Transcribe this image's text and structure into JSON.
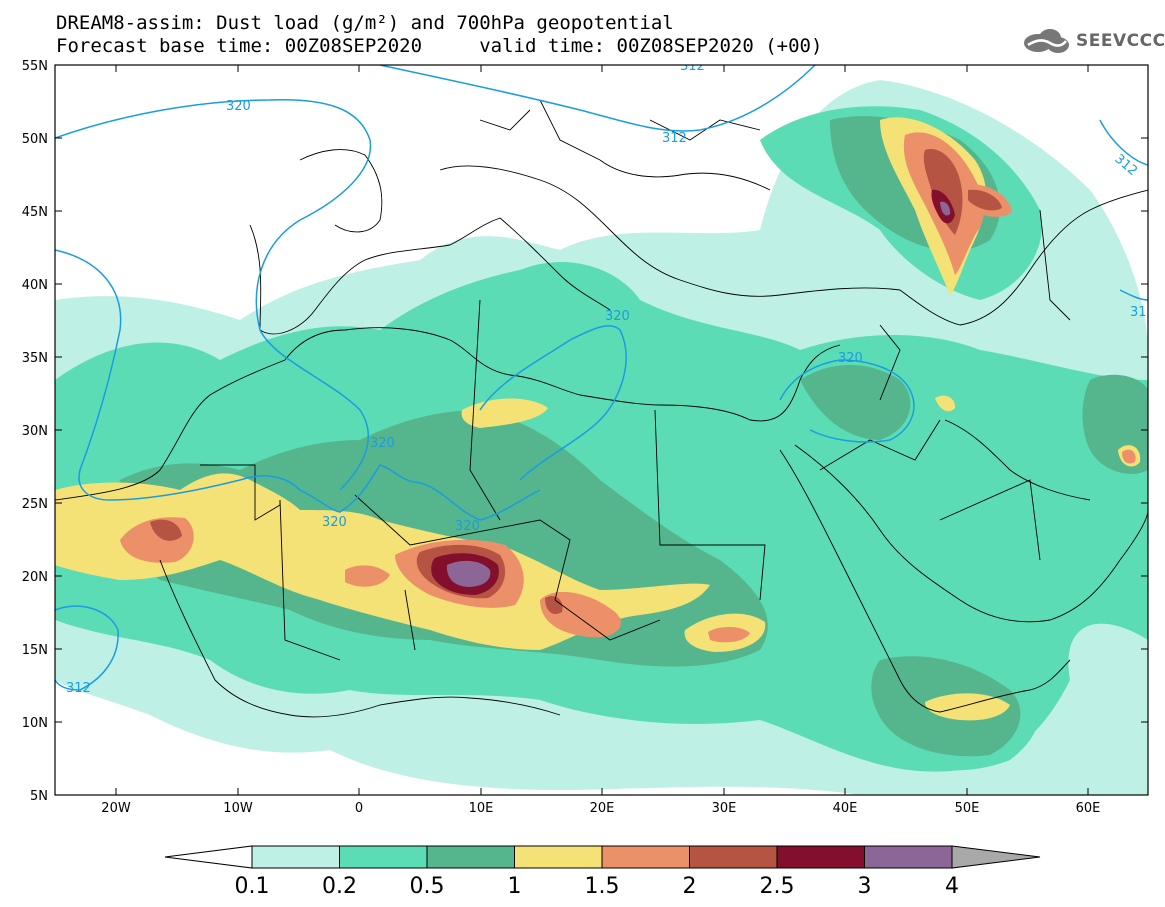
{
  "header": {
    "title_line1": "DREAM8-assim: Dust load (g/m²) and 700hPa geopotential",
    "title_line2": "Forecast base time: 00Z08SEP2020     valid time: 00Z08SEP2020 (+00)",
    "logo_text": "SEEVCCC",
    "logo_icon": "cloud-icon"
  },
  "map": {
    "lat_labels": [
      "55N",
      "50N",
      "45N",
      "40N",
      "35N",
      "30N",
      "25N",
      "20N",
      "15N",
      "10N",
      "5N"
    ],
    "lon_labels": [
      "20W",
      "10W",
      "0",
      "10E",
      "20E",
      "30E",
      "40E",
      "50E",
      "60E"
    ],
    "contour_labels": [
      "320",
      "312",
      "312",
      "320",
      "320",
      "320",
      "320",
      "320",
      "312",
      "312",
      "31"
    ]
  },
  "legend": {
    "colors": [
      "#bff0e6",
      "#5cdcb4",
      "#55b68e",
      "#f4e276",
      "#eb9068",
      "#b55443",
      "#840f2d",
      "#8c6696"
    ],
    "labels": [
      "0.1",
      "0.2",
      "0.5",
      "1",
      "1.5",
      "2",
      "2.5",
      "3",
      "4"
    ],
    "min_arrow_color": "#ffffff",
    "max_arrow_color": "#a9a9a9"
  }
}
